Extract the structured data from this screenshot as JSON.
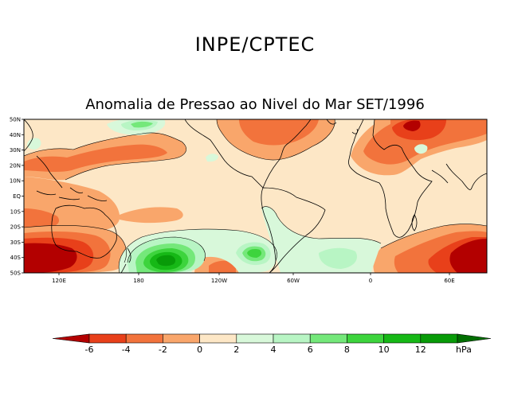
{
  "header": {
    "agency": "INPE/CPTEC",
    "title": "Anomalia de Pressao ao Nivel do Mar SET/1996"
  },
  "axes": {
    "lat_labels": [
      "50N",
      "40N",
      "30N",
      "20N",
      "10N",
      "EQ",
      "10S",
      "20S",
      "30S",
      "40S",
      "50S"
    ],
    "lon_labels": [
      "120E",
      "180",
      "120W",
      "60W",
      "0",
      "60E"
    ]
  },
  "colorbar": {
    "unit": "hPa",
    "tick_labels": [
      "-6",
      "-4",
      "-2",
      "0",
      "2",
      "4",
      "6",
      "8",
      "10",
      "12"
    ],
    "colors": [
      "#b30000",
      "#e8401a",
      "#f2733c",
      "#f9a66b",
      "#fde7c6",
      "#d8f8da",
      "#b8f5c4",
      "#74e87a",
      "#3dd43d",
      "#16b816",
      "#089b08",
      "#006e00"
    ]
  },
  "field_colors": {
    "neutral": "#fde7c6",
    "neg2": "#f9a66b",
    "neg4": "#f2733c",
    "neg6": "#e8401a",
    "neg8": "#b30000",
    "pos0": "#d8f8da",
    "pos2": "#b8f5c4",
    "pos4": "#74e87a",
    "pos6": "#3dd43d",
    "pos8": "#16b816",
    "pos10": "#089b08"
  }
}
